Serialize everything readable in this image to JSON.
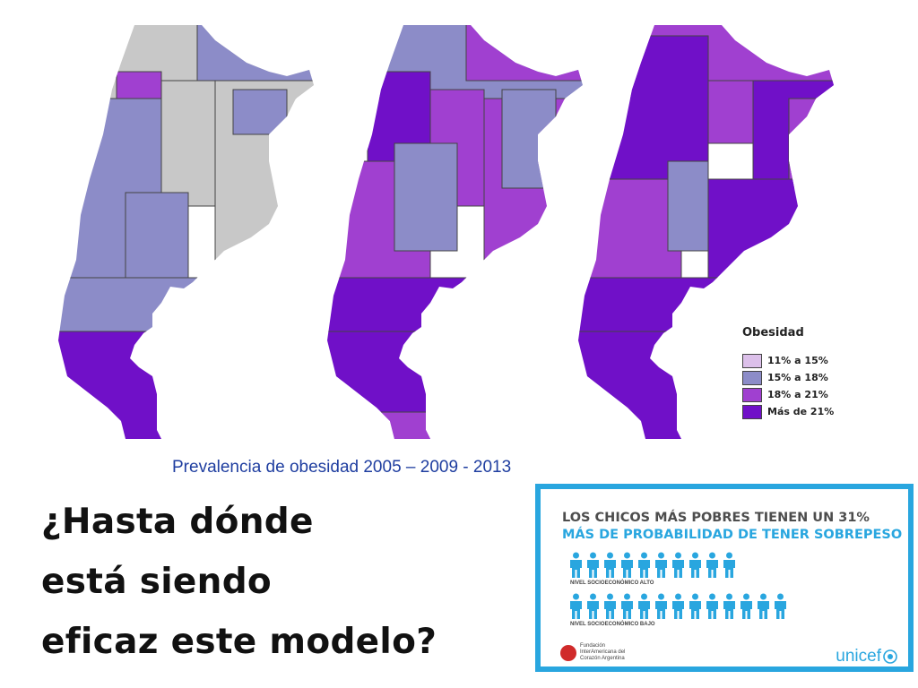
{
  "colors": {
    "gray": "#c8c8c8",
    "light_lilac": "#dcc0ea",
    "slate_blue": "#8c8cc8",
    "medium_purple": "#a040d0",
    "dark_purple": "#7010c8",
    "info_blue": "#29a6df"
  },
  "maps": [
    {
      "year": "2005"
    },
    {
      "year": "2009"
    },
    {
      "year": "2013"
    }
  ],
  "legend": {
    "title": "Obesidad",
    "items": [
      {
        "label": "11% a 15%",
        "color": "#dcc0ea"
      },
      {
        "label": "15% a 18%",
        "color": "#8c8cc8"
      },
      {
        "label": "18% a 21%",
        "color": "#a040d0"
      },
      {
        "label": "Más de 21%",
        "color": "#7010c8"
      }
    ]
  },
  "caption": "Prevalencia de obesidad 2005 – 2009 - 2013",
  "question": [
    "¿Hasta dónde",
    "está siendo",
    "eficaz este modelo?"
  ],
  "infographic": {
    "line1": "LOS CHICOS MÁS POBRES TIENEN UN 31%",
    "line2": "MÁS DE PROBABILIDAD DE TENER SOBREPESO",
    "group_high": {
      "label": "NIVEL SOCIOECONÓMICO ALTO",
      "count": 10
    },
    "group_low": {
      "label": "NIVEL SOCIOECONÓMICO BAJO",
      "count": 13
    },
    "foundation_name": "Fundación InterAmericana del Corazón Argentina",
    "brand": "unicef"
  }
}
